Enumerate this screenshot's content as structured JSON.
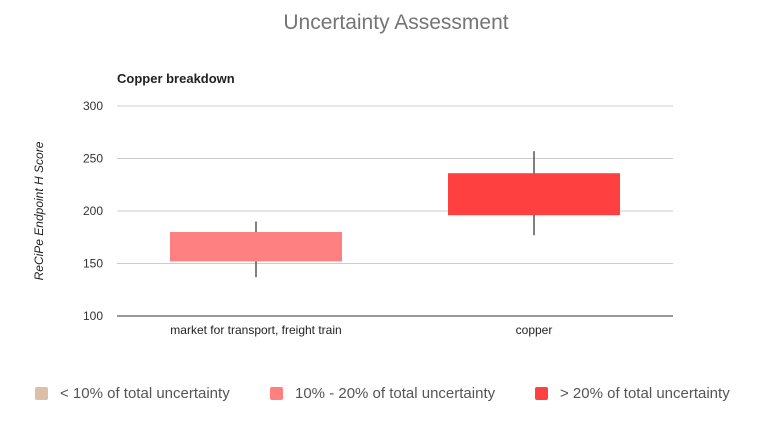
{
  "chart_data": {
    "type": "candlestick",
    "title": "Uncertainty Assessment",
    "subtitle": "Copper breakdown",
    "ylabel": "ReCiPe Endpoint H Score",
    "xlabel": "",
    "ylim": [
      100,
      300
    ],
    "yticks": [
      "100",
      "150",
      "200",
      "250",
      "300"
    ],
    "grid": true,
    "legend_position": "bottom",
    "categories": [
      "market for transport, freight train",
      "copper"
    ],
    "boxes": [
      {
        "category": "market for transport, freight train",
        "low": 137,
        "high": 190,
        "box_low": 152,
        "box_high": 180,
        "group": "10% - 20% of total uncertainty",
        "color": "#ff8080"
      },
      {
        "category": "copper",
        "low": 177,
        "high": 257,
        "box_low": 196,
        "box_high": 236,
        "group": "> 20% of total uncertainty",
        "color": "#ff4040"
      }
    ],
    "legend": [
      {
        "label": "< 10% of total uncertainty",
        "color": "#dbbfa8"
      },
      {
        "label": "10% - 20% of total uncertainty",
        "color": "#ff8080"
      },
      {
        "label": "> 20% of total uncertainty",
        "color": "#ff4040"
      }
    ]
  },
  "colors": {
    "grid": "#cccccc",
    "baseline": "#333333",
    "wick": "#555555",
    "axis_text": "#333333",
    "title_text": "#757575"
  }
}
